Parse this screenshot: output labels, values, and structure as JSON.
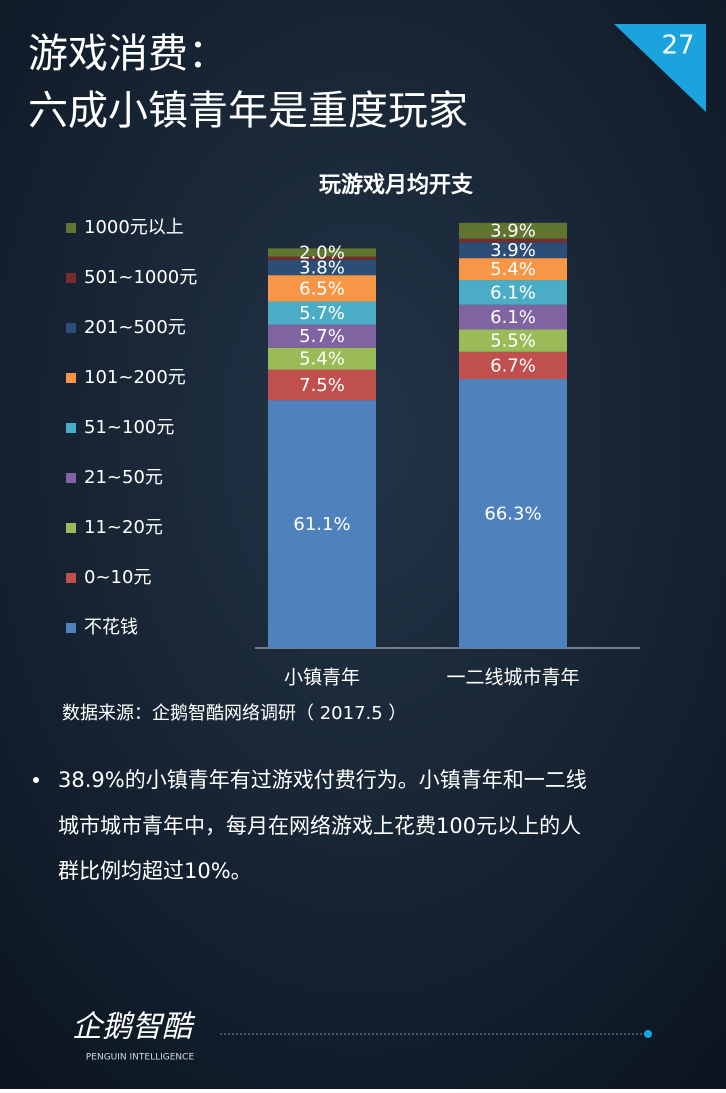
{
  "header": {
    "title_lines": [
      "游戏消费：",
      "六成小镇青年是重度玩家"
    ],
    "page_number": "27"
  },
  "chart_data": {
    "type": "stacked_bar",
    "title": "玩游戏月均开支",
    "categories": [
      "小镇青年",
      "一二线城市青年"
    ],
    "ylim": [
      0,
      105
    ],
    "legend": "left",
    "series": [
      {
        "name": "不花钱",
        "color": "#4f81bd",
        "values": [
          61.1,
          66.3
        ],
        "value_labels": [
          "61.1%",
          "66.3%"
        ]
      },
      {
        "name": "0~10元",
        "color": "#c0504d",
        "values": [
          7.5,
          6.7
        ],
        "value_labels": [
          "7.5%",
          "6.7%"
        ]
      },
      {
        "name": "11~20元",
        "color": "#9bbb59",
        "values": [
          5.4,
          5.5
        ],
        "value_labels": [
          "5.4%",
          "5.5%"
        ]
      },
      {
        "name": "21~50元",
        "color": "#8064a2",
        "values": [
          5.7,
          6.1
        ],
        "value_labels": [
          "5.7%",
          "6.1%"
        ]
      },
      {
        "name": "51~100元",
        "color": "#4bacc6",
        "values": [
          5.7,
          6.1
        ],
        "value_labels": [
          "5.7%",
          "6.1%"
        ]
      },
      {
        "name": "101~200元",
        "color": "#f79646",
        "values": [
          6.5,
          5.4
        ],
        "value_labels": [
          "6.5%",
          "5.4%"
        ]
      },
      {
        "name": "201~500元",
        "color": "#2c4d75",
        "values": [
          3.8,
          3.9
        ],
        "value_labels": [
          "3.8%",
          "3.9%"
        ]
      },
      {
        "name": "501~1000元",
        "color": "#772c2a",
        "values": [
          0.8,
          0.9
        ],
        "value_labels": [
          null,
          null
        ]
      },
      {
        "name": "1000元以上",
        "color": "#5f7530",
        "values": [
          2.0,
          3.9
        ],
        "value_labels": [
          "2.0%",
          "3.9%"
        ]
      }
    ]
  },
  "source": "数据来源：企鹅智酷网络调研（  2017.5 ）",
  "bullet": [
    "38.9%的小镇青年有过游戏付费行为。小镇青年和一二线",
    "城市城市青年中，每月在网络游戏上花费100元以上的人",
    "群比例均超过10%。"
  ],
  "logo": {
    "name": "企鹅智酷",
    "tagline": "PENGUIN INTELLIGENCE"
  }
}
